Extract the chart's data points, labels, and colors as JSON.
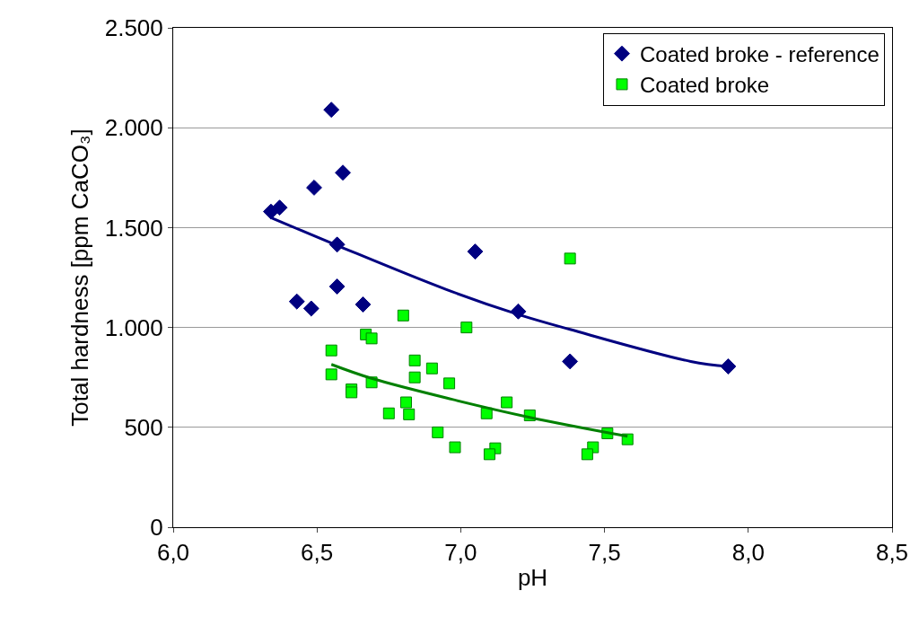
{
  "chart_data": {
    "type": "scatter",
    "xlabel": "pH",
    "ylabel": "Total hardness [ppm CaCO₃]",
    "xlim": [
      6.0,
      8.5
    ],
    "xticks": [
      {
        "value": 6.0,
        "label": "6,0"
      },
      {
        "value": 6.5,
        "label": "6,5"
      },
      {
        "value": 7.0,
        "label": "7,0"
      },
      {
        "value": 7.5,
        "label": "7,5"
      },
      {
        "value": 8.0,
        "label": "8,0"
      },
      {
        "value": 8.5,
        "label": "8,5"
      }
    ],
    "ylim": [
      0,
      2500
    ],
    "yticks": [
      0,
      500,
      {
        "value": 1000,
        "label": "1.000"
      },
      {
        "value": 1500,
        "label": "1.500"
      },
      {
        "value": 2000,
        "label": "2.000"
      },
      {
        "value": 2500,
        "label": "2.500"
      }
    ],
    "grid": "y",
    "legend": "top right",
    "series": [
      {
        "name": "Coated broke - reference",
        "marker": "diamond",
        "color": "#000080",
        "x": [
          6.55,
          6.59,
          6.49,
          6.34,
          6.37,
          6.57,
          7.05,
          6.57,
          6.43,
          6.48,
          6.66,
          7.2,
          7.38,
          7.93
        ],
        "values": [
          2090,
          1775,
          1700,
          1580,
          1600,
          1415,
          1380,
          1205,
          1130,
          1095,
          1115,
          1080,
          830,
          805
        ]
      },
      {
        "name": "Coated broke",
        "marker": "square",
        "color": "#00ff00",
        "x": [
          6.8,
          7.02,
          6.67,
          6.69,
          6.55,
          6.55,
          6.84,
          6.9,
          6.84,
          6.96,
          6.69,
          6.62,
          6.62,
          6.81,
          6.75,
          6.82,
          7.09,
          7.16,
          7.24,
          6.92,
          6.98,
          7.12,
          7.1,
          7.51,
          7.46,
          7.44,
          7.58,
          7.38
        ],
        "values": [
          1060,
          1000,
          965,
          945,
          885,
          765,
          835,
          795,
          750,
          720,
          725,
          690,
          675,
          625,
          570,
          565,
          570,
          625,
          560,
          475,
          400,
          395,
          365,
          470,
          400,
          365,
          440,
          1345
        ]
      },
      {
        "type": "line",
        "marker": "none",
        "line_style": "solid",
        "color": "#000080",
        "x": [
          6.34,
          6.58,
          6.95,
          7.2,
          7.38,
          7.8,
          7.93
        ],
        "values": [
          1550,
          1405,
          1190,
          1065,
          990,
          830,
          805
        ]
      },
      {
        "type": "line",
        "marker": "none",
        "line_style": "solid",
        "color": "#008000",
        "x": [
          6.55,
          6.69,
          6.97,
          7.24,
          7.58
        ],
        "values": [
          815,
          745,
          640,
          550,
          455
        ]
      }
    ]
  }
}
